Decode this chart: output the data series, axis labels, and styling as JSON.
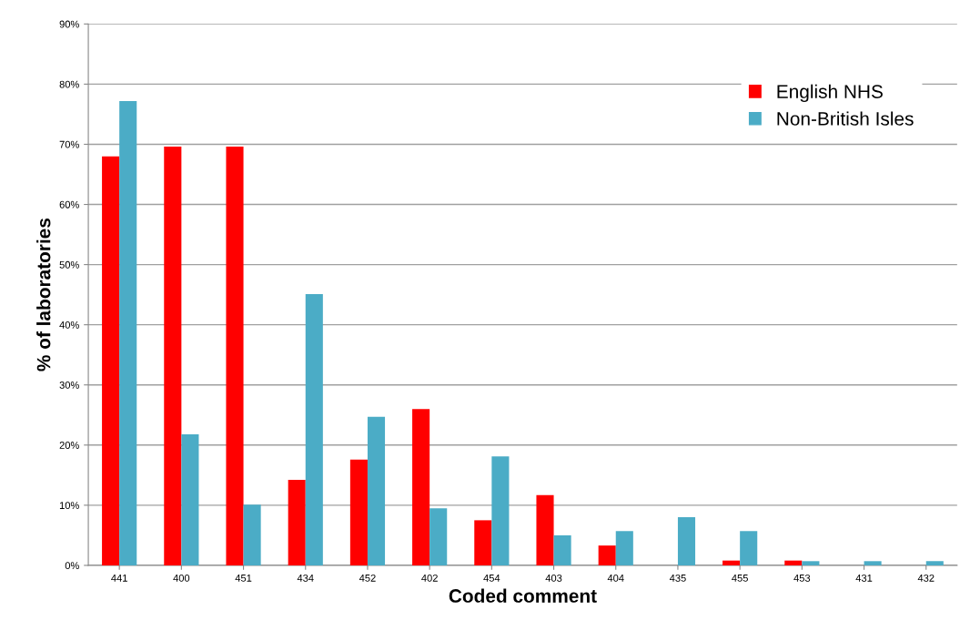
{
  "chart_data": {
    "type": "bar",
    "xlabel": "Coded comment",
    "ylabel": "% of laboratories",
    "categories": [
      "441",
      "400",
      "451",
      "434",
      "452",
      "402",
      "454",
      "403",
      "404",
      "435",
      "455",
      "453",
      "431",
      "432"
    ],
    "series": [
      {
        "name": "English NHS",
        "color": "#ff0000",
        "values": [
          68.0,
          69.6,
          69.6,
          14.2,
          17.6,
          26.0,
          7.5,
          11.7,
          3.3,
          0,
          0.8,
          0.8,
          0,
          0
        ]
      },
      {
        "name": "Non-British Isles",
        "color": "#4bacc6",
        "values": [
          77.2,
          21.8,
          10.1,
          45.1,
          24.7,
          9.5,
          18.1,
          5.0,
          5.7,
          8.0,
          5.7,
          0.7,
          0.7,
          0.7
        ]
      }
    ],
    "ylim": [
      0,
      90
    ],
    "yticks": [
      {
        "value": 0,
        "label": "0%"
      },
      {
        "value": 10,
        "label": "10%"
      },
      {
        "value": 20,
        "label": "20%"
      },
      {
        "value": 30,
        "label": "30%"
      },
      {
        "value": 40,
        "label": "40%"
      },
      {
        "value": 50,
        "label": "50%"
      },
      {
        "value": 60,
        "label": "60%"
      },
      {
        "value": 70,
        "label": "70%"
      },
      {
        "value": 80,
        "label": "80%"
      },
      {
        "value": 90,
        "label": "90%"
      }
    ],
    "grid": "y",
    "legend": "top right"
  }
}
